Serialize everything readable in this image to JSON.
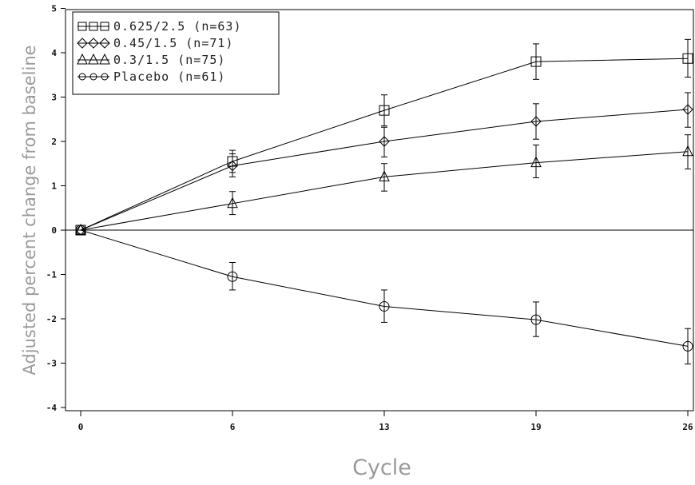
{
  "chart_data": {
    "type": "line",
    "xlabel": "Cycle",
    "ylabel": "Adjusted percent change from baseline",
    "x": [
      0,
      6,
      13,
      19,
      26
    ],
    "x_ticks": [
      "0",
      "6",
      "13",
      "19",
      "26"
    ],
    "y_ticks": [
      "5",
      "4",
      "3",
      "2",
      "1",
      "0",
      "-1",
      "-2",
      "-3",
      "-4"
    ],
    "ylim": [
      -4,
      5
    ],
    "grid": false,
    "legend_position": "top-left",
    "reference_line_y": 0,
    "series": [
      {
        "name": "0.625/2.5 (n=63)",
        "marker": "square",
        "values": [
          0,
          1.55,
          2.7,
          3.8,
          3.87
        ],
        "err_low": [
          0,
          1.3,
          2.35,
          3.4,
          3.45
        ],
        "err_high": [
          0,
          1.8,
          3.05,
          4.2,
          4.3
        ]
      },
      {
        "name": "0.45/1.5 (n=71)",
        "marker": "diamond",
        "values": [
          0,
          1.45,
          2.0,
          2.45,
          2.72
        ],
        "err_low": [
          0,
          1.2,
          1.65,
          2.05,
          2.32
        ],
        "err_high": [
          0,
          1.72,
          2.32,
          2.85,
          3.1
        ]
      },
      {
        "name": "0.3/1.5 (n=75)",
        "marker": "triangle",
        "values": [
          0,
          0.6,
          1.2,
          1.52,
          1.77
        ],
        "err_low": [
          0,
          0.35,
          0.88,
          1.18,
          1.38
        ],
        "err_high": [
          0,
          0.87,
          1.5,
          1.92,
          2.15
        ]
      },
      {
        "name": "Placebo (n=61)",
        "marker": "circle",
        "values": [
          0,
          -1.05,
          -1.72,
          -2.02,
          -2.62
        ],
        "err_low": [
          0,
          -1.35,
          -2.08,
          -2.4,
          -3.02
        ],
        "err_high": [
          0,
          -0.73,
          -1.35,
          -1.62,
          -2.22
        ]
      }
    ]
  }
}
